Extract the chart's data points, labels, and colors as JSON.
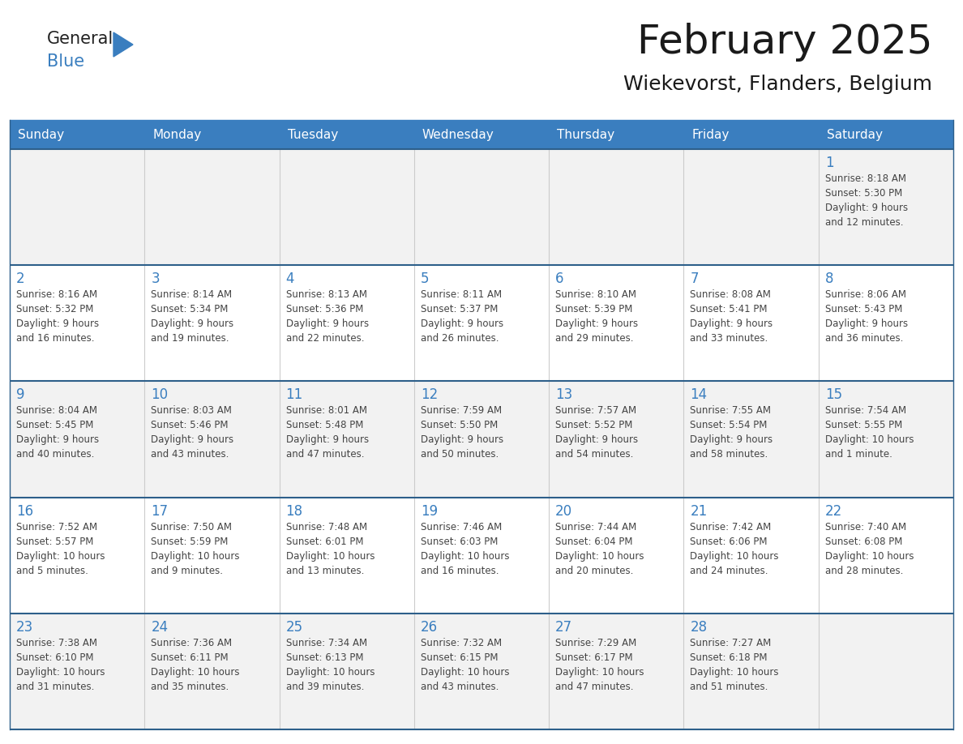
{
  "title": "February 2025",
  "subtitle": "Wiekevorst, Flanders, Belgium",
  "days_of_week": [
    "Sunday",
    "Monday",
    "Tuesday",
    "Wednesday",
    "Thursday",
    "Friday",
    "Saturday"
  ],
  "header_bg": "#3a7ebf",
  "header_text": "#FFFFFF",
  "cell_bg_white": "#FFFFFF",
  "cell_bg_gray": "#f2f2f2",
  "grid_color": "#3a7ebf",
  "grid_color_dark": "#2d5f8a",
  "day_number_color": "#3a7ebf",
  "text_color": "#444444",
  "logo_text_color": "#222222",
  "logo_blue_color": "#3a7ebf",
  "week_rows": [
    {
      "bg": "#f2f2f2",
      "days": [
        {
          "date": null,
          "info": null
        },
        {
          "date": null,
          "info": null
        },
        {
          "date": null,
          "info": null
        },
        {
          "date": null,
          "info": null
        },
        {
          "date": null,
          "info": null
        },
        {
          "date": null,
          "info": null
        },
        {
          "date": 1,
          "info": "Sunrise: 8:18 AM\nSunset: 5:30 PM\nDaylight: 9 hours\nand 12 minutes."
        }
      ]
    },
    {
      "bg": "#ffffff",
      "days": [
        {
          "date": 2,
          "info": "Sunrise: 8:16 AM\nSunset: 5:32 PM\nDaylight: 9 hours\nand 16 minutes."
        },
        {
          "date": 3,
          "info": "Sunrise: 8:14 AM\nSunset: 5:34 PM\nDaylight: 9 hours\nand 19 minutes."
        },
        {
          "date": 4,
          "info": "Sunrise: 8:13 AM\nSunset: 5:36 PM\nDaylight: 9 hours\nand 22 minutes."
        },
        {
          "date": 5,
          "info": "Sunrise: 8:11 AM\nSunset: 5:37 PM\nDaylight: 9 hours\nand 26 minutes."
        },
        {
          "date": 6,
          "info": "Sunrise: 8:10 AM\nSunset: 5:39 PM\nDaylight: 9 hours\nand 29 minutes."
        },
        {
          "date": 7,
          "info": "Sunrise: 8:08 AM\nSunset: 5:41 PM\nDaylight: 9 hours\nand 33 minutes."
        },
        {
          "date": 8,
          "info": "Sunrise: 8:06 AM\nSunset: 5:43 PM\nDaylight: 9 hours\nand 36 minutes."
        }
      ]
    },
    {
      "bg": "#f2f2f2",
      "days": [
        {
          "date": 9,
          "info": "Sunrise: 8:04 AM\nSunset: 5:45 PM\nDaylight: 9 hours\nand 40 minutes."
        },
        {
          "date": 10,
          "info": "Sunrise: 8:03 AM\nSunset: 5:46 PM\nDaylight: 9 hours\nand 43 minutes."
        },
        {
          "date": 11,
          "info": "Sunrise: 8:01 AM\nSunset: 5:48 PM\nDaylight: 9 hours\nand 47 minutes."
        },
        {
          "date": 12,
          "info": "Sunrise: 7:59 AM\nSunset: 5:50 PM\nDaylight: 9 hours\nand 50 minutes."
        },
        {
          "date": 13,
          "info": "Sunrise: 7:57 AM\nSunset: 5:52 PM\nDaylight: 9 hours\nand 54 minutes."
        },
        {
          "date": 14,
          "info": "Sunrise: 7:55 AM\nSunset: 5:54 PM\nDaylight: 9 hours\nand 58 minutes."
        },
        {
          "date": 15,
          "info": "Sunrise: 7:54 AM\nSunset: 5:55 PM\nDaylight: 10 hours\nand 1 minute."
        }
      ]
    },
    {
      "bg": "#ffffff",
      "days": [
        {
          "date": 16,
          "info": "Sunrise: 7:52 AM\nSunset: 5:57 PM\nDaylight: 10 hours\nand 5 minutes."
        },
        {
          "date": 17,
          "info": "Sunrise: 7:50 AM\nSunset: 5:59 PM\nDaylight: 10 hours\nand 9 minutes."
        },
        {
          "date": 18,
          "info": "Sunrise: 7:48 AM\nSunset: 6:01 PM\nDaylight: 10 hours\nand 13 minutes."
        },
        {
          "date": 19,
          "info": "Sunrise: 7:46 AM\nSunset: 6:03 PM\nDaylight: 10 hours\nand 16 minutes."
        },
        {
          "date": 20,
          "info": "Sunrise: 7:44 AM\nSunset: 6:04 PM\nDaylight: 10 hours\nand 20 minutes."
        },
        {
          "date": 21,
          "info": "Sunrise: 7:42 AM\nSunset: 6:06 PM\nDaylight: 10 hours\nand 24 minutes."
        },
        {
          "date": 22,
          "info": "Sunrise: 7:40 AM\nSunset: 6:08 PM\nDaylight: 10 hours\nand 28 minutes."
        }
      ]
    },
    {
      "bg": "#f2f2f2",
      "days": [
        {
          "date": 23,
          "info": "Sunrise: 7:38 AM\nSunset: 6:10 PM\nDaylight: 10 hours\nand 31 minutes."
        },
        {
          "date": 24,
          "info": "Sunrise: 7:36 AM\nSunset: 6:11 PM\nDaylight: 10 hours\nand 35 minutes."
        },
        {
          "date": 25,
          "info": "Sunrise: 7:34 AM\nSunset: 6:13 PM\nDaylight: 10 hours\nand 39 minutes."
        },
        {
          "date": 26,
          "info": "Sunrise: 7:32 AM\nSunset: 6:15 PM\nDaylight: 10 hours\nand 43 minutes."
        },
        {
          "date": 27,
          "info": "Sunrise: 7:29 AM\nSunset: 6:17 PM\nDaylight: 10 hours\nand 47 minutes."
        },
        {
          "date": 28,
          "info": "Sunrise: 7:27 AM\nSunset: 6:18 PM\nDaylight: 10 hours\nand 51 minutes."
        },
        {
          "date": null,
          "info": null
        }
      ]
    }
  ]
}
